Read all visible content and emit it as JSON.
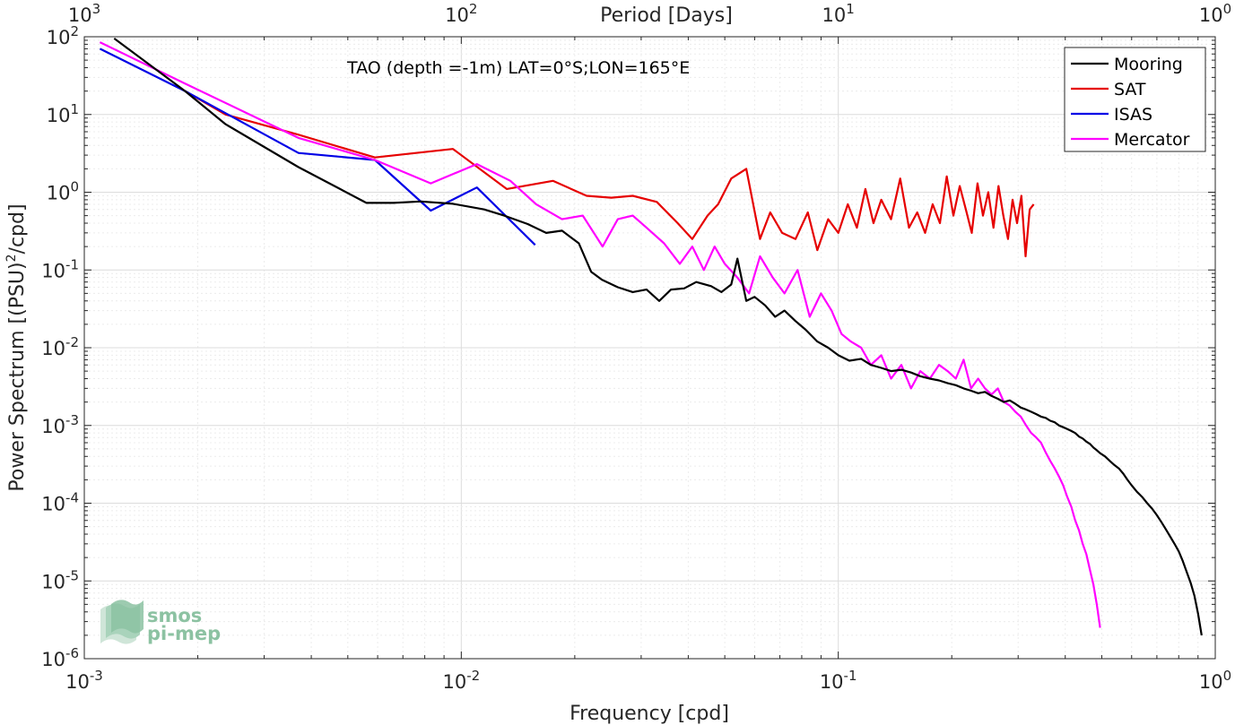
{
  "chart_data": {
    "type": "line",
    "title": "",
    "annotation": "TAO (depth =-1m) LAT=0°S;LON=165°E",
    "xlabel": "Frequency [cpd]",
    "ylabel_main": "Power Spectrum [(PSU)",
    "ylabel_sup": "2",
    "ylabel_tail": "/cpd]",
    "top_xlabel": "Period [Days]",
    "x_scale": "log",
    "y_scale": "log",
    "xlim": [
      0.001,
      1
    ],
    "ylim": [
      1e-06,
      100
    ],
    "grid": true,
    "legend_position": "top-right",
    "x_ticks": [
      {
        "value": 0.001,
        "base": "10",
        "exp": "-3"
      },
      {
        "value": 0.01,
        "base": "10",
        "exp": "-2"
      },
      {
        "value": 0.1,
        "base": "10",
        "exp": "-1"
      },
      {
        "value": 1,
        "base": "10",
        "exp": "0"
      }
    ],
    "top_ticks": [
      {
        "value": 0.001,
        "base": "10",
        "exp": "3"
      },
      {
        "value": 0.01,
        "base": "10",
        "exp": "2"
      },
      {
        "value": 0.1,
        "base": "10",
        "exp": "1"
      },
      {
        "value": 1,
        "base": "10",
        "exp": "0"
      }
    ],
    "y_ticks": [
      {
        "value": 100,
        "base": "10",
        "exp": "2"
      },
      {
        "value": 10,
        "base": "10",
        "exp": "1"
      },
      {
        "value": 1,
        "base": "10",
        "exp": "0"
      },
      {
        "value": 0.1,
        "base": "10",
        "exp": "-1"
      },
      {
        "value": 0.01,
        "base": "10",
        "exp": "-2"
      },
      {
        "value": 0.001,
        "base": "10",
        "exp": "-3"
      },
      {
        "value": 0.0001,
        "base": "10",
        "exp": "-4"
      },
      {
        "value": 1e-05,
        "base": "10",
        "exp": "-5"
      },
      {
        "value": 1e-06,
        "base": "10",
        "exp": "-6"
      }
    ],
    "series": [
      {
        "name": "Mooring",
        "color": "#000000",
        "x": [
          0.0012,
          0.00185,
          0.00237,
          0.0037,
          0.00477,
          0.0056,
          0.0066,
          0.0078,
          0.0095,
          0.0115,
          0.013,
          0.015,
          0.0168,
          0.0185,
          0.0205,
          0.0221,
          0.0236,
          0.026,
          0.0285,
          0.031,
          0.0335,
          0.036,
          0.039,
          0.042,
          0.046,
          0.049,
          0.052,
          0.054,
          0.057,
          0.06,
          0.064,
          0.068,
          0.072,
          0.077,
          0.082,
          0.088,
          0.094,
          0.1,
          0.107,
          0.115,
          0.122,
          0.13,
          0.138,
          0.147,
          0.156,
          0.165,
          0.175,
          0.185,
          0.195,
          0.205,
          0.215,
          0.225,
          0.235,
          0.245,
          0.255,
          0.265,
          0.275,
          0.285,
          0.295,
          0.305,
          0.315,
          0.325,
          0.335,
          0.345,
          0.355,
          0.365,
          0.375,
          0.385,
          0.395,
          0.405,
          0.415,
          0.425,
          0.435,
          0.445,
          0.455,
          0.465,
          0.475,
          0.485,
          0.495,
          0.51,
          0.525,
          0.54,
          0.555,
          0.57,
          0.585,
          0.6,
          0.62,
          0.64,
          0.66,
          0.68,
          0.7,
          0.72,
          0.74,
          0.76,
          0.78,
          0.8,
          0.82,
          0.84,
          0.86,
          0.88,
          0.9,
          0.92
        ],
        "values": [
          95,
          20,
          7.5,
          2.1,
          1.1,
          0.73,
          0.73,
          0.76,
          0.71,
          0.6,
          0.5,
          0.39,
          0.3,
          0.32,
          0.22,
          0.095,
          0.075,
          0.06,
          0.052,
          0.056,
          0.04,
          0.056,
          0.058,
          0.07,
          0.062,
          0.052,
          0.065,
          0.14,
          0.04,
          0.045,
          0.035,
          0.025,
          0.03,
          0.022,
          0.017,
          0.012,
          0.01,
          0.008,
          0.0068,
          0.0072,
          0.006,
          0.0055,
          0.005,
          0.0052,
          0.0048,
          0.0043,
          0.004,
          0.0038,
          0.0035,
          0.0033,
          0.003,
          0.0028,
          0.0026,
          0.0027,
          0.0024,
          0.0022,
          0.002,
          0.0021,
          0.0019,
          0.0017,
          0.0016,
          0.0015,
          0.0014,
          0.0013,
          0.00125,
          0.00115,
          0.0011,
          0.001,
          0.00095,
          0.0009,
          0.00085,
          0.0008,
          0.00072,
          0.00068,
          0.00062,
          0.00058,
          0.00052,
          0.00048,
          0.00044,
          0.0004,
          0.00035,
          0.00031,
          0.00028,
          0.00024,
          0.0002,
          0.00017,
          0.00014,
          0.00012,
          0.0001,
          8.5e-05,
          7e-05,
          5.7e-05,
          4.6e-05,
          3.7e-05,
          3e-05,
          2.4e-05,
          1.8e-05,
          1.3e-05,
          9.5e-06,
          6.5e-06,
          3.8e-06,
          2e-06
        ]
      },
      {
        "name": "SAT",
        "color": "#e60000",
        "x": [
          0.00185,
          0.00237,
          0.0037,
          0.0059,
          0.0095,
          0.0132,
          0.0175,
          0.0215,
          0.025,
          0.0285,
          0.033,
          0.0375,
          0.041,
          0.045,
          0.048,
          0.052,
          0.057,
          0.062,
          0.066,
          0.071,
          0.077,
          0.083,
          0.088,
          0.094,
          0.1,
          0.106,
          0.112,
          0.118,
          0.124,
          0.13,
          0.138,
          0.146,
          0.154,
          0.162,
          0.17,
          0.178,
          0.186,
          0.194,
          0.202,
          0.21,
          0.218,
          0.226,
          0.234,
          0.242,
          0.25,
          0.258,
          0.266,
          0.274,
          0.282,
          0.29,
          0.298,
          0.306,
          0.314,
          0.322,
          0.33
        ],
        "values": [
          20,
          10,
          5.5,
          2.8,
          3.6,
          1.1,
          1.4,
          0.9,
          0.85,
          0.9,
          0.75,
          0.4,
          0.25,
          0.5,
          0.7,
          1.5,
          2.0,
          0.25,
          0.55,
          0.3,
          0.25,
          0.55,
          0.18,
          0.45,
          0.3,
          0.7,
          0.35,
          1.1,
          0.4,
          0.8,
          0.45,
          1.5,
          0.35,
          0.55,
          0.3,
          0.7,
          0.4,
          1.6,
          0.5,
          1.2,
          0.6,
          0.3,
          1.3,
          0.5,
          1.0,
          0.35,
          1.2,
          0.5,
          0.25,
          0.8,
          0.4,
          0.9,
          0.15,
          0.6,
          0.7
        ]
      },
      {
        "name": "ISAS",
        "color": "#0000e6",
        "x": [
          0.0011,
          0.00185,
          0.0037,
          0.0059,
          0.0083,
          0.011,
          0.0157
        ],
        "values": [
          70,
          20,
          3.2,
          2.6,
          0.58,
          1.15,
          0.21
        ]
      },
      {
        "name": "Mercator",
        "color": "#ff00ff",
        "x": [
          0.0011,
          0.00185,
          0.0037,
          0.0059,
          0.0083,
          0.011,
          0.0135,
          0.0158,
          0.0185,
          0.021,
          0.0237,
          0.026,
          0.0285,
          0.031,
          0.0345,
          0.038,
          0.041,
          0.044,
          0.047,
          0.05,
          0.054,
          0.058,
          0.062,
          0.067,
          0.072,
          0.078,
          0.084,
          0.09,
          0.096,
          0.102,
          0.108,
          0.115,
          0.122,
          0.13,
          0.138,
          0.147,
          0.156,
          0.165,
          0.175,
          0.185,
          0.195,
          0.205,
          0.215,
          0.225,
          0.235,
          0.245,
          0.255,
          0.265,
          0.275,
          0.285,
          0.295,
          0.305,
          0.315,
          0.325,
          0.335,
          0.345,
          0.355,
          0.365,
          0.375,
          0.385,
          0.395,
          0.405,
          0.415,
          0.425,
          0.435,
          0.445,
          0.455,
          0.465,
          0.475,
          0.485,
          0.495
        ],
        "values": [
          85,
          25,
          5.0,
          2.6,
          1.3,
          2.3,
          1.4,
          0.7,
          0.45,
          0.5,
          0.2,
          0.45,
          0.5,
          0.35,
          0.22,
          0.12,
          0.2,
          0.1,
          0.2,
          0.12,
          0.08,
          0.05,
          0.15,
          0.08,
          0.05,
          0.1,
          0.025,
          0.05,
          0.03,
          0.015,
          0.012,
          0.01,
          0.006,
          0.008,
          0.004,
          0.006,
          0.003,
          0.005,
          0.004,
          0.006,
          0.005,
          0.004,
          0.007,
          0.003,
          0.004,
          0.003,
          0.0025,
          0.003,
          0.002,
          0.0018,
          0.0015,
          0.0013,
          0.001,
          0.0008,
          0.0007,
          0.0006,
          0.00045,
          0.00035,
          0.00028,
          0.00022,
          0.00017,
          0.00012,
          9e-05,
          6e-05,
          4.5e-05,
          3e-05,
          2.2e-05,
          1.4e-05,
          9e-06,
          5e-06,
          2.5e-06
        ]
      }
    ]
  },
  "logo": {
    "line1": "smos",
    "line2": "pi-mep",
    "color": "#8cc2a2"
  }
}
